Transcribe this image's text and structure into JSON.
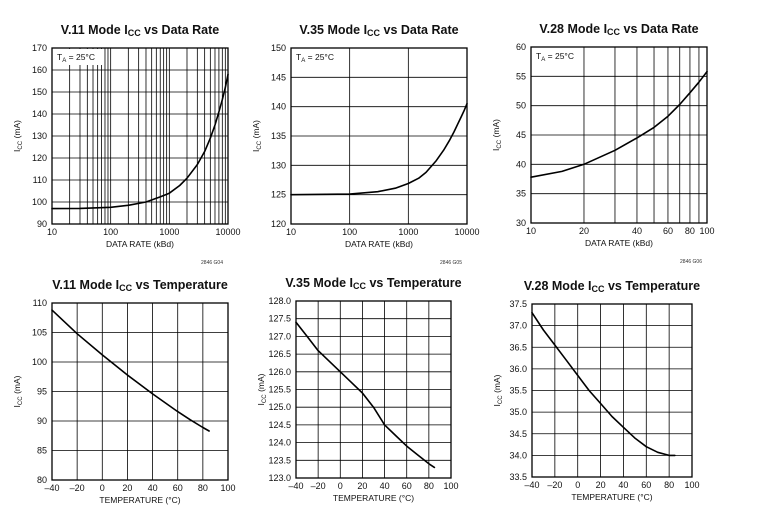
{
  "chart_data": [
    {
      "type": "line",
      "title": "V.11 Mode I<sub>CC</sub> vs Data Rate",
      "xlabel": "DATA RATE (kBd)",
      "ylabel": "I<sub>CC</sub> (mA)",
      "xscale": "log",
      "xlim": [
        10,
        10000
      ],
      "ylim": [
        90,
        170
      ],
      "xticks": [
        10,
        100,
        1000,
        10000
      ],
      "xtick_labels": [
        "10",
        "100",
        "1000",
        "10000"
      ],
      "yticks": [
        90,
        100,
        110,
        120,
        130,
        140,
        150,
        160,
        170
      ],
      "ytick_labels": [
        "90",
        "100",
        "110",
        "120",
        "130",
        "140",
        "150",
        "160",
        "170"
      ],
      "xgrid": [
        20,
        30,
        40,
        50,
        60,
        70,
        80,
        90,
        200,
        300,
        400,
        500,
        600,
        700,
        800,
        900,
        2000,
        3000,
        4000,
        5000,
        6000,
        7000,
        8000,
        9000
      ],
      "condition": "T<sub>A</sub> = 25°C",
      "code": "2846 G04",
      "grid": true,
      "series": [
        {
          "x": [
            10,
            30,
            100,
            200,
            400,
            700,
            1000,
            1500,
            2000,
            3000,
            4000,
            5000,
            6000,
            7000,
            8000,
            9000,
            10000
          ],
          "y": [
            97,
            97.1,
            97.6,
            98.5,
            100,
            102.3,
            104,
            107.5,
            110.8,
            117,
            123,
            129,
            135,
            141,
            146.5,
            152,
            158
          ]
        }
      ]
    },
    {
      "type": "line",
      "title": "V.35 Mode I<sub>CC</sub> vs Data Rate",
      "xlabel": "DATA RATE (kBd)",
      "ylabel": "I<sub>CC</sub> (mA)",
      "xscale": "log",
      "xlim": [
        10,
        10000
      ],
      "ylim": [
        120,
        150
      ],
      "xticks": [
        10,
        100,
        1000,
        10000
      ],
      "xtick_labels": [
        "10",
        "100",
        "1000",
        "10000"
      ],
      "yticks": [
        120,
        125,
        130,
        135,
        140,
        145,
        150
      ],
      "ytick_labels": [
        "120",
        "125",
        "130",
        "135",
        "140",
        "145",
        "150"
      ],
      "xgrid": [],
      "condition": "T<sub>A</sub> = 25°C",
      "code": "2846 G05",
      "grid": true,
      "series": [
        {
          "x": [
            10,
            100,
            300,
            600,
            1000,
            1500,
            2000,
            3000,
            4000,
            5000,
            6000,
            7000,
            8000,
            9000,
            10000
          ],
          "y": [
            125,
            125.1,
            125.5,
            126.1,
            126.9,
            127.8,
            128.8,
            130.8,
            132.6,
            134.2,
            135.7,
            137.1,
            138.3,
            139.4,
            140.5
          ]
        }
      ]
    },
    {
      "type": "line",
      "title": "V.28 Mode I<sub>CC</sub> vs Data Rate",
      "xlabel": "DATA RATE (kBd)",
      "ylabel": "I<sub>CC</sub> (mA)",
      "xscale": "log",
      "xlim": [
        10,
        100
      ],
      "ylim": [
        30,
        60
      ],
      "xticks": [
        10,
        20,
        40,
        60,
        80,
        100
      ],
      "xtick_labels": [
        "10",
        "20",
        "40",
        "60",
        "80",
        "100"
      ],
      "yticks": [
        30,
        35,
        40,
        45,
        50,
        55,
        60
      ],
      "ytick_labels": [
        "30",
        "35",
        "40",
        "45",
        "50",
        "55",
        "60"
      ],
      "xgrid": [
        30,
        50,
        70,
        90
      ],
      "condition": "T<sub>A</sub> = 25°C",
      "code": "2846 G06",
      "grid": true,
      "series": [
        {
          "x": [
            10,
            15,
            20,
            30,
            40,
            50,
            60,
            70,
            80,
            90,
            100
          ],
          "y": [
            37.8,
            38.8,
            40,
            42.4,
            44.5,
            46.3,
            48.2,
            50.2,
            52.2,
            54,
            55.8
          ]
        }
      ]
    },
    {
      "type": "line",
      "title": "V.11 Mode I<sub>CC</sub> vs Temperature",
      "xlabel": "TEMPERATURE (°C)",
      "ylabel": "I<sub>CC</sub> (mA)",
      "xscale": "linear",
      "xlim": [
        -40,
        100
      ],
      "ylim": [
        80,
        110
      ],
      "xticks": [
        -40,
        -20,
        0,
        20,
        40,
        60,
        80,
        100
      ],
      "xtick_labels": [
        "–40",
        "–20",
        "0",
        "20",
        "40",
        "60",
        "80",
        "100"
      ],
      "yticks": [
        80,
        85,
        90,
        95,
        100,
        105,
        110
      ],
      "ytick_labels": [
        "80",
        "85",
        "90",
        "95",
        "100",
        "105",
        "110"
      ],
      "xgrid": [],
      "condition": "",
      "code": "",
      "grid": true,
      "series": [
        {
          "x": [
            -40,
            -30,
            -20,
            0,
            20,
            40,
            60,
            70,
            80,
            85
          ],
          "y": [
            108.8,
            106.8,
            104.8,
            101.2,
            97.8,
            94.6,
            91.6,
            90.2,
            88.9,
            88.3
          ]
        }
      ]
    },
    {
      "type": "line",
      "title": "V.35 Mode I<sub>CC</sub> vs Temperature",
      "xlabel": "TEMPERATURE (°C)",
      "ylabel": "I<sub>CC</sub> (mA)",
      "xscale": "linear",
      "xlim": [
        -40,
        100
      ],
      "ylim": [
        123,
        128
      ],
      "xticks": [
        -40,
        -20,
        0,
        20,
        40,
        60,
        80,
        100
      ],
      "xtick_labels": [
        "–40",
        "–20",
        "0",
        "20",
        "40",
        "60",
        "80",
        "100"
      ],
      "yticks": [
        123,
        123.5,
        124,
        124.5,
        125,
        125.5,
        126,
        126.5,
        127,
        127.5,
        128
      ],
      "ytick_labels": [
        "123.0",
        "123.5",
        "124.0",
        "124.5",
        "125.0",
        "125.5",
        "126.0",
        "126.5",
        "127.0",
        "127.5",
        "128.0"
      ],
      "xgrid": [],
      "condition": "",
      "code": "",
      "grid": true,
      "series": [
        {
          "x": [
            -40,
            -30,
            -20,
            -10,
            0,
            10,
            20,
            30,
            40,
            50,
            60,
            70,
            80,
            85
          ],
          "y": [
            127.4,
            127.0,
            126.6,
            126.3,
            126.0,
            125.7,
            125.4,
            125.0,
            124.5,
            124.2,
            123.9,
            123.65,
            123.4,
            123.3
          ]
        }
      ]
    },
    {
      "type": "line",
      "title": "V.28 Mode I<sub>CC</sub> vs Temperature",
      "xlabel": "TEMPERATURE (°C)",
      "ylabel": "I<sub>CC</sub> (mA)",
      "xscale": "linear",
      "xlim": [
        -40,
        100
      ],
      "ylim": [
        33.5,
        37.5
      ],
      "xticks": [
        -40,
        -20,
        0,
        20,
        40,
        60,
        80,
        100
      ],
      "xtick_labels": [
        "–40",
        "–20",
        "0",
        "20",
        "40",
        "60",
        "80",
        "100"
      ],
      "yticks": [
        33.5,
        34,
        34.5,
        35,
        35.5,
        36,
        36.5,
        37,
        37.5
      ],
      "ytick_labels": [
        "33.5",
        "34.0",
        "34.5",
        "35.0",
        "35.5",
        "36.0",
        "36.5",
        "37.0",
        "37.5"
      ],
      "xgrid": [],
      "condition": "",
      "code": "",
      "grid": true,
      "series": [
        {
          "x": [
            -40,
            -30,
            -20,
            -10,
            0,
            10,
            20,
            30,
            40,
            50,
            60,
            70,
            80,
            85
          ],
          "y": [
            37.3,
            36.9,
            36.55,
            36.2,
            35.85,
            35.5,
            35.2,
            34.9,
            34.65,
            34.4,
            34.2,
            34.07,
            34.0,
            34.0
          ]
        }
      ]
    }
  ]
}
